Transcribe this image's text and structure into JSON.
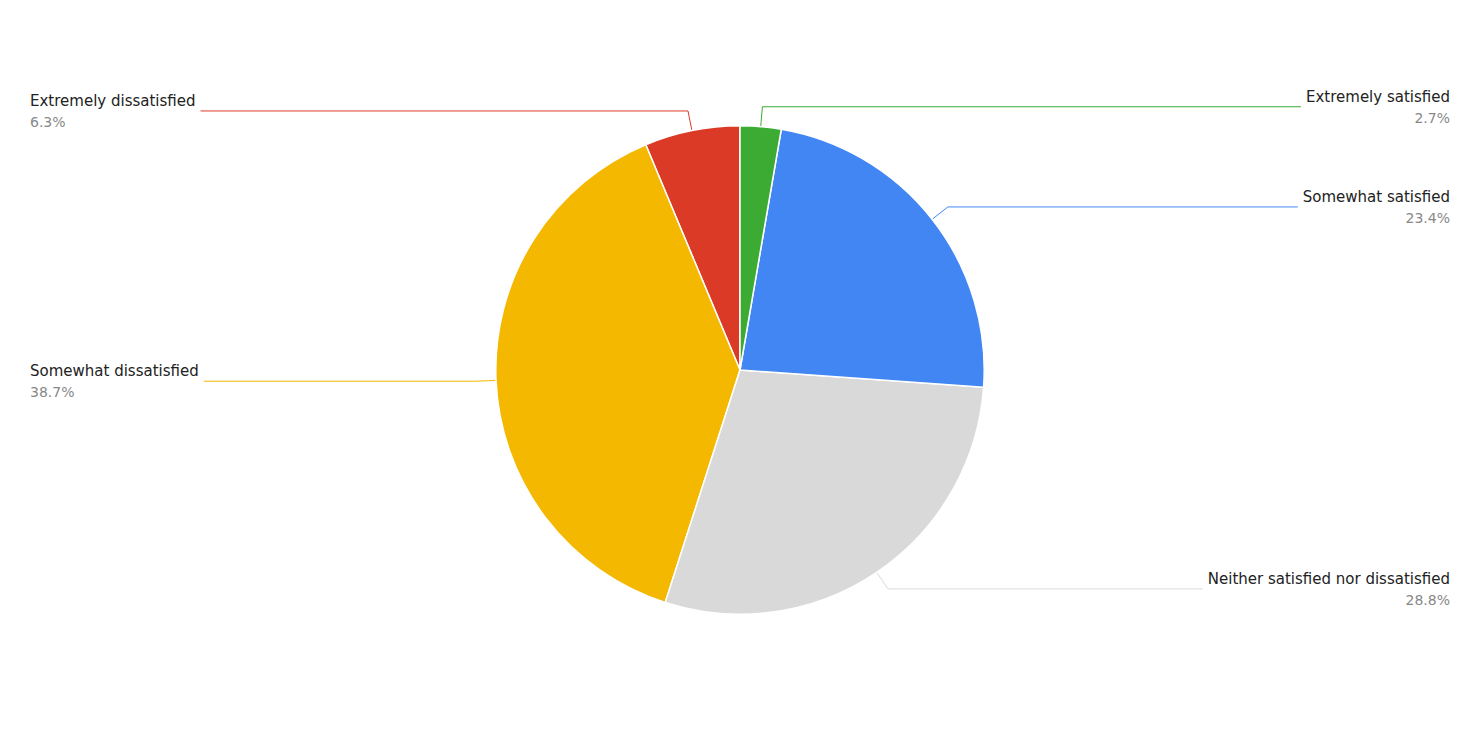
{
  "chart_data": {
    "type": "pie",
    "categories": [
      "Extremely dissatisfied",
      "Somewhat dissatisfied",
      "Neither satisfied nor dissatisfied",
      "Somewhat satisfied",
      "Extremely satisfied"
    ],
    "values": [
      6.3,
      38.7,
      28.8,
      23.4,
      2.7
    ],
    "value_labels": [
      "6.3%",
      "38.7%",
      "28.8%",
      "23.4%",
      "2.7%"
    ],
    "colors": [
      "#db3b26",
      "#f5b800",
      "#d9d9d9",
      "#4286f4",
      "#3bab34"
    ],
    "data_labels": true
  }
}
